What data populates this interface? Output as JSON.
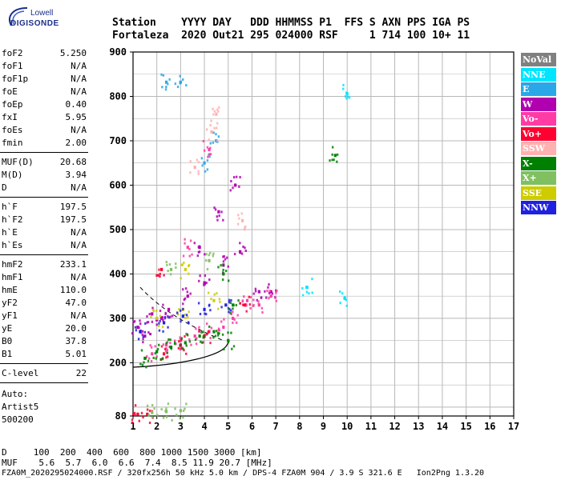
{
  "logo": {
    "top": "Lowell",
    "bottom": "DIGISONDE"
  },
  "header": {
    "labels": "Station    YYYY DAY   DDD HHMMSS P1  FFS S AXN PPS IGA PS",
    "values": "Fortaleza  2020 Out21 295 024000 RSF     1 714 100 10+ 11"
  },
  "params": {
    "group1": [
      {
        "k": "foF2",
        "v": "5.250"
      },
      {
        "k": "foF1",
        "v": "N/A"
      },
      {
        "k": "foF1p",
        "v": "N/A"
      },
      {
        "k": "foE",
        "v": "N/A"
      },
      {
        "k": "foEp",
        "v": "0.40"
      },
      {
        "k": "fxI",
        "v": "5.95"
      },
      {
        "k": "foEs",
        "v": "N/A"
      },
      {
        "k": "fmin",
        "v": "2.00"
      }
    ],
    "group2": [
      {
        "k": "MUF(D)",
        "v": "20.68"
      },
      {
        "k": "M(D)",
        "v": "3.94"
      },
      {
        "k": "D",
        "v": "N/A"
      }
    ],
    "group3": [
      {
        "k": "h`F",
        "v": "197.5"
      },
      {
        "k": "h`F2",
        "v": "197.5"
      },
      {
        "k": "h`E",
        "v": "N/A"
      },
      {
        "k": "h`Es",
        "v": "N/A"
      }
    ],
    "group4": [
      {
        "k": "hmF2",
        "v": "233.1"
      },
      {
        "k": "hmF1",
        "v": "N/A"
      },
      {
        "k": "hmE",
        "v": "110.0"
      },
      {
        "k": "yF2",
        "v": "47.0"
      },
      {
        "k": "yF1",
        "v": "N/A"
      },
      {
        "k": "yE",
        "v": "20.0"
      },
      {
        "k": "B0",
        "v": "37.8"
      },
      {
        "k": "B1",
        "v": "5.01"
      }
    ],
    "group5": [
      {
        "k": "C-level",
        "v": "22"
      }
    ]
  },
  "auto": {
    "l1": "Auto:",
    "l2": "Artist5",
    "l3": "500200"
  },
  "footer": {
    "d_line": "D     100  200  400  600  800 1000 1500 3000 [km]",
    "muf_line": "MUF    5.6  5.7  6.0  6.6  7.4  8.5 11.9 20.7 [MHz]",
    "file_line": "FZA0M_2020295024000.RSF / 320fx256h 50 kHz 5.0 km / DPS-4 FZA0M 904 / 3.9 S 321.6 E   Ion2Png 1.3.20"
  },
  "legend": [
    {
      "label": "NoVal",
      "color": "#808080"
    },
    {
      "label": "NNE",
      "color": "#00e5ff"
    },
    {
      "label": "E",
      "color": "#2aa7e8"
    },
    {
      "label": "W",
      "color": "#b000b0"
    },
    {
      "label": "Vo-",
      "color": "#ff3ca6"
    },
    {
      "label": "Vo+",
      "color": "#ff0030"
    },
    {
      "label": "SSW",
      "color": "#ffb0b0"
    },
    {
      "label": "X-",
      "color": "#008000"
    },
    {
      "label": "X+",
      "color": "#80c060"
    },
    {
      "label": "SSE",
      "color": "#cccc00"
    },
    {
      "label": "NNW",
      "color": "#2020e0"
    }
  ],
  "chart_data": {
    "type": "scatter",
    "xlim": [
      1,
      17
    ],
    "ylim": [
      80,
      900
    ],
    "x_ticks": [
      1,
      2,
      3,
      4,
      5,
      6,
      7,
      8,
      9,
      10,
      11,
      12,
      13,
      14,
      15,
      16,
      17
    ],
    "y_ticks": [
      80,
      200,
      300,
      400,
      500,
      600,
      700,
      800,
      900
    ],
    "grid": true,
    "series": [
      {
        "name": "NNE",
        "points": [
          [
            9.9,
            345
          ],
          [
            8.3,
            370
          ],
          [
            10.0,
            806
          ]
        ]
      },
      {
        "name": "E",
        "points": [
          [
            2.4,
            832
          ],
          [
            3.0,
            832
          ],
          [
            4.0,
            650
          ],
          [
            4.5,
            700
          ]
        ]
      },
      {
        "name": "W",
        "points": [
          [
            1.2,
            280
          ],
          [
            1.8,
            310
          ],
          [
            2.5,
            320
          ],
          [
            3.3,
            350
          ],
          [
            4.0,
            380
          ],
          [
            4.8,
            420
          ],
          [
            5.5,
            450
          ],
          [
            6.3,
            360
          ],
          [
            6.8,
            360
          ],
          [
            3.8,
            460
          ],
          [
            4.6,
            540
          ],
          [
            5.3,
            600
          ],
          [
            1.5,
            260
          ],
          [
            2.2,
            300
          ]
        ]
      },
      {
        "name": "Vo-",
        "points": [
          [
            1.8,
            220
          ],
          [
            2.4,
            240
          ],
          [
            3.0,
            250
          ],
          [
            3.6,
            260
          ],
          [
            4.2,
            270
          ],
          [
            4.8,
            280
          ],
          [
            5.2,
            300
          ],
          [
            5.8,
            340
          ],
          [
            6.3,
            330
          ],
          [
            6.8,
            350
          ],
          [
            4.2,
            680
          ],
          [
            3.3,
            460
          ]
        ]
      },
      {
        "name": "Vo+",
        "points": [
          [
            1.2,
            84
          ],
          [
            1.6,
            84
          ],
          [
            2.3,
            220
          ],
          [
            3.0,
            240
          ],
          [
            4.0,
            260
          ],
          [
            2.2,
            410
          ],
          [
            5.7,
            330
          ]
        ]
      },
      {
        "name": "SSW",
        "points": [
          [
            4.5,
            760
          ],
          [
            4.3,
            720
          ],
          [
            3.6,
            640
          ],
          [
            5.6,
            520
          ]
        ]
      },
      {
        "name": "X-",
        "points": [
          [
            1.5,
            210
          ],
          [
            2.0,
            225
          ],
          [
            2.6,
            235
          ],
          [
            3.2,
            245
          ],
          [
            3.8,
            260
          ],
          [
            4.4,
            270
          ],
          [
            5.0,
            250
          ],
          [
            5.2,
            330
          ],
          [
            9.5,
            667
          ],
          [
            4.8,
            400
          ]
        ]
      },
      {
        "name": "X+",
        "points": [
          [
            1.8,
            88
          ],
          [
            2.4,
            90
          ],
          [
            3.0,
            92
          ],
          [
            2.6,
            410
          ],
          [
            4.2,
            430
          ]
        ]
      },
      {
        "name": "SSE",
        "points": [
          [
            2.0,
            300
          ],
          [
            3.1,
            320
          ],
          [
            4.4,
            340
          ],
          [
            3.2,
            410
          ]
        ]
      },
      {
        "name": "NNW",
        "points": [
          [
            1.3,
            270
          ],
          [
            2.3,
            290
          ],
          [
            3.1,
            305
          ],
          [
            4.0,
            320
          ],
          [
            4.9,
            330
          ]
        ]
      }
    ]
  }
}
